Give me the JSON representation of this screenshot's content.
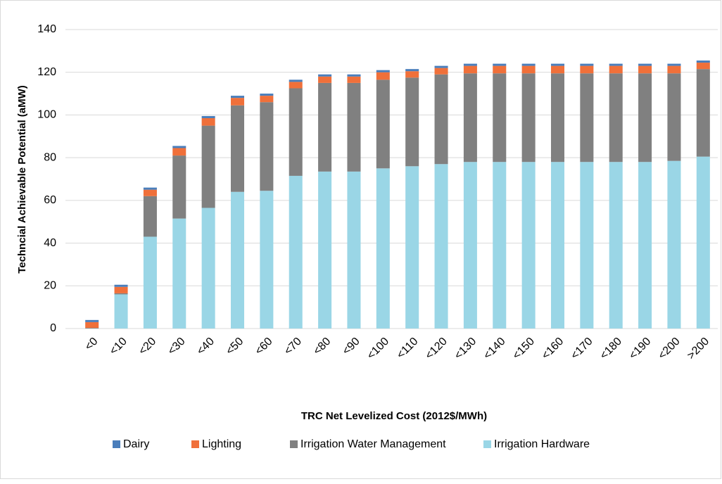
{
  "chart_data": {
    "type": "stacked_bar",
    "y_axis_label": "Techncial Achievable Potential (aMW)",
    "x_axis_label": "TRC Net Levelized Cost (2012$/MWh)",
    "categories": [
      "<0",
      "<10",
      "<20",
      "<30",
      "<40",
      "<50",
      "<60",
      "<70",
      "<80",
      "<90",
      "<100",
      "<110",
      "<120",
      "<130",
      "<140",
      "<150",
      "<160",
      "<170",
      "<180",
      "<190",
      "<200",
      ">200"
    ],
    "series": [
      {
        "name": "Dairy",
        "color": "#4a7ebb",
        "values": [
          1,
          1,
          1,
          1,
          1,
          1,
          1,
          1,
          1,
          1,
          1,
          1,
          1,
          1,
          1,
          1,
          1,
          1,
          1,
          1,
          1,
          1
        ]
      },
      {
        "name": "Lighting",
        "color": "#f0703a",
        "values": [
          2.7,
          3,
          3,
          3.5,
          3.5,
          3.5,
          3,
          3,
          3,
          3,
          3.5,
          3,
          3,
          3.5,
          3.5,
          3.5,
          3.5,
          3.5,
          3.5,
          3.5,
          3.5,
          3
        ]
      },
      {
        "name": "Irrigation Water Management",
        "color": "#808080",
        "values": [
          0.3,
          0.5,
          19,
          29.5,
          38.5,
          40.5,
          41.5,
          41,
          41.5,
          41.5,
          41.5,
          41.5,
          42,
          41.5,
          41.5,
          41.5,
          41.5,
          41.5,
          41.5,
          41.5,
          41,
          41
        ]
      },
      {
        "name": "Irrigation Hardware",
        "color": "#9ad6e6",
        "values": [
          0,
          16,
          43,
          51.5,
          56.5,
          64,
          64.5,
          71.5,
          73.5,
          73.5,
          75,
          76,
          77,
          78,
          78,
          78,
          78,
          78,
          78,
          78,
          78.5,
          80.5
        ]
      }
    ],
    "ylim": [
      0,
      140
    ],
    "yticks": [
      0,
      20,
      40,
      60,
      80,
      100,
      120,
      140
    ],
    "grid": true,
    "legend": "bottom"
  }
}
